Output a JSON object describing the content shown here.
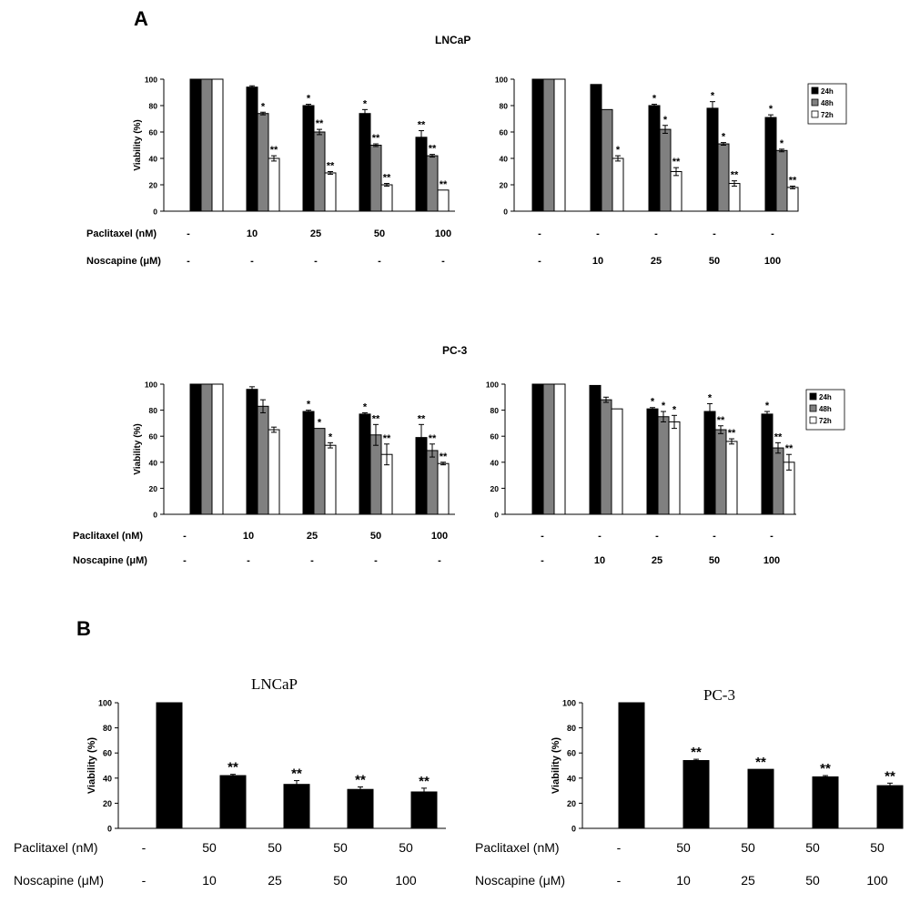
{
  "panels": {
    "a": "A",
    "b": "B"
  },
  "section_titles": {
    "lncap": "LNCaP",
    "pc3": "PC-3"
  },
  "chart_data": [
    {
      "id": "A-LNCaP-paclitaxel",
      "type": "bar",
      "title": "",
      "xlabel": "",
      "ylabel": "Viability (%)",
      "ylim": [
        0,
        100
      ],
      "yticks": [
        0,
        20,
        40,
        60,
        80,
        100
      ],
      "series": [
        {
          "name": "24h",
          "color": "#000000",
          "values": [
            100,
            94,
            80,
            74,
            56
          ],
          "errors": [
            0,
            1,
            1,
            3,
            5
          ],
          "stars": [
            "",
            "",
            "*",
            "*",
            "**"
          ]
        },
        {
          "name": "48h",
          "color": "#808080",
          "values": [
            100,
            74,
            60,
            50,
            42
          ],
          "errors": [
            0,
            1,
            2,
            1,
            1
          ],
          "stars": [
            "",
            "*",
            "**",
            "**",
            "**"
          ]
        },
        {
          "name": "72h",
          "color": "#ffffff",
          "values": [
            100,
            40,
            29,
            20,
            16
          ],
          "errors": [
            0,
            2,
            1,
            1,
            0
          ],
          "stars": [
            "",
            "**",
            "**",
            "**",
            "**"
          ]
        }
      ],
      "table": {
        "rows": [
          {
            "label": "Paclitaxel (nM)",
            "values": [
              "-",
              "10",
              "25",
              "50",
              "100"
            ]
          },
          {
            "label": "Noscapine (μM)",
            "values": [
              "-",
              "-",
              "-",
              "-",
              "-"
            ]
          }
        ]
      }
    },
    {
      "id": "A-LNCaP-noscapine",
      "type": "bar",
      "title": "",
      "xlabel": "",
      "ylabel": "",
      "ylim": [
        0,
        100
      ],
      "yticks": [
        0,
        20,
        40,
        60,
        80,
        100
      ],
      "legend": {
        "position": "top-right",
        "entries": [
          "24h",
          "48h",
          "72h"
        ]
      },
      "series": [
        {
          "name": "24h",
          "color": "#000000",
          "values": [
            100,
            96,
            80,
            78,
            71
          ],
          "errors": [
            0,
            0,
            1,
            5,
            2
          ],
          "stars": [
            "",
            "",
            "*",
            "*",
            "*"
          ]
        },
        {
          "name": "48h",
          "color": "#808080",
          "values": [
            100,
            77,
            62,
            51,
            46
          ],
          "errors": [
            0,
            0,
            3,
            1,
            1
          ],
          "stars": [
            "",
            "",
            "*",
            "*",
            "*"
          ]
        },
        {
          "name": "72h",
          "color": "#ffffff",
          "values": [
            100,
            40,
            30,
            21,
            18
          ],
          "errors": [
            0,
            2,
            3,
            2,
            1
          ],
          "stars": [
            "",
            "*",
            "**",
            "**",
            "**"
          ]
        }
      ],
      "table": {
        "rows": [
          {
            "label": "",
            "values": [
              "-",
              "-",
              "-",
              "-",
              "-"
            ]
          },
          {
            "label": "",
            "values": [
              "-",
              "10",
              "25",
              "50",
              "100"
            ]
          }
        ]
      }
    },
    {
      "id": "A-PC3-paclitaxel",
      "type": "bar",
      "title": "",
      "xlabel": "",
      "ylabel": "Viability (%)",
      "ylim": [
        0,
        100
      ],
      "yticks": [
        0,
        20,
        40,
        60,
        80,
        100
      ],
      "series": [
        {
          "name": "24h",
          "color": "#000000",
          "values": [
            100,
            96,
            79,
            77,
            59
          ],
          "errors": [
            0,
            2,
            1,
            1,
            10
          ],
          "stars": [
            "",
            "",
            "*",
            "*",
            "**"
          ]
        },
        {
          "name": "48h",
          "color": "#808080",
          "values": [
            100,
            83,
            66,
            61,
            49
          ],
          "errors": [
            0,
            5,
            0,
            8,
            5
          ],
          "stars": [
            "",
            "",
            "*",
            "**",
            "**"
          ]
        },
        {
          "name": "72h",
          "color": "#ffffff",
          "values": [
            100,
            65,
            53,
            46,
            39
          ],
          "errors": [
            0,
            2,
            2,
            8,
            1
          ],
          "stars": [
            "",
            "",
            "*",
            "**",
            "**"
          ]
        }
      ],
      "table": {
        "rows": [
          {
            "label": "Paclitaxel (nM)",
            "values": [
              "-",
              "10",
              "25",
              "50",
              "100"
            ]
          },
          {
            "label": "Noscapine (μM)",
            "values": [
              "-",
              "-",
              "-",
              "-",
              "-"
            ]
          }
        ]
      }
    },
    {
      "id": "A-PC3-noscapine",
      "type": "bar",
      "title": "",
      "xlabel": "",
      "ylabel": "",
      "ylim": [
        0,
        100
      ],
      "yticks": [
        0,
        20,
        40,
        60,
        80,
        100
      ],
      "legend": {
        "position": "top-right",
        "entries": [
          "24h",
          "48h",
          "72h"
        ]
      },
      "series": [
        {
          "name": "24h",
          "color": "#000000",
          "values": [
            100,
            99,
            81,
            79,
            77
          ],
          "errors": [
            0,
            0,
            1,
            6,
            2
          ],
          "stars": [
            "",
            "",
            "*",
            "*",
            "*"
          ]
        },
        {
          "name": "48h",
          "color": "#808080",
          "values": [
            100,
            88,
            75,
            65,
            51
          ],
          "errors": [
            0,
            2,
            4,
            3,
            4
          ],
          "stars": [
            "",
            "",
            "*",
            "**",
            "**"
          ]
        },
        {
          "name": "72h",
          "color": "#ffffff",
          "values": [
            100,
            81,
            71,
            56,
            40
          ],
          "errors": [
            0,
            0,
            5,
            2,
            6
          ],
          "stars": [
            "",
            "",
            "*",
            "**",
            "**"
          ]
        }
      ],
      "table": {
        "rows": [
          {
            "label": "",
            "values": [
              "-",
              "-",
              "-",
              "-",
              "-"
            ]
          },
          {
            "label": "",
            "values": [
              "-",
              "10",
              "25",
              "50",
              "100"
            ]
          }
        ]
      }
    },
    {
      "id": "B-LNCaP",
      "type": "bar",
      "title": "LNCaP",
      "xlabel": "",
      "ylabel": "Viability (%)",
      "ylim": [
        0,
        100
      ],
      "yticks": [
        0,
        20,
        40,
        60,
        80,
        100
      ],
      "series": [
        {
          "name": "",
          "color": "#000000",
          "values": [
            100,
            42,
            35,
            31,
            29
          ],
          "errors": [
            0,
            1,
            3,
            2,
            3
          ],
          "stars": [
            "",
            "**",
            "**",
            "**",
            "**"
          ]
        }
      ],
      "table": {
        "rows": [
          {
            "label": "Paclitaxel (nM)",
            "values": [
              "-",
              "50",
              "50",
              "50",
              "50"
            ]
          },
          {
            "label": "Noscapine (μM)",
            "values": [
              "-",
              "10",
              "25",
              "50",
              "100"
            ]
          }
        ]
      }
    },
    {
      "id": "B-PC3",
      "type": "bar",
      "title": "PC-3",
      "xlabel": "",
      "ylabel": "Viability (%)",
      "ylim": [
        0,
        100
      ],
      "yticks": [
        0,
        20,
        40,
        60,
        80,
        100
      ],
      "series": [
        {
          "name": "",
          "color": "#000000",
          "values": [
            100,
            54,
            47,
            41,
            34
          ],
          "errors": [
            0,
            1,
            0,
            1,
            2
          ],
          "stars": [
            "",
            "**",
            "**",
            "**",
            "**"
          ]
        }
      ],
      "table": {
        "rows": [
          {
            "label": "Paclitaxel (nM)",
            "values": [
              "-",
              "50",
              "50",
              "50",
              "50"
            ]
          },
          {
            "label": "Noscapine (μM)",
            "values": [
              "-",
              "10",
              "25",
              "50",
              "100"
            ]
          }
        ]
      }
    }
  ]
}
